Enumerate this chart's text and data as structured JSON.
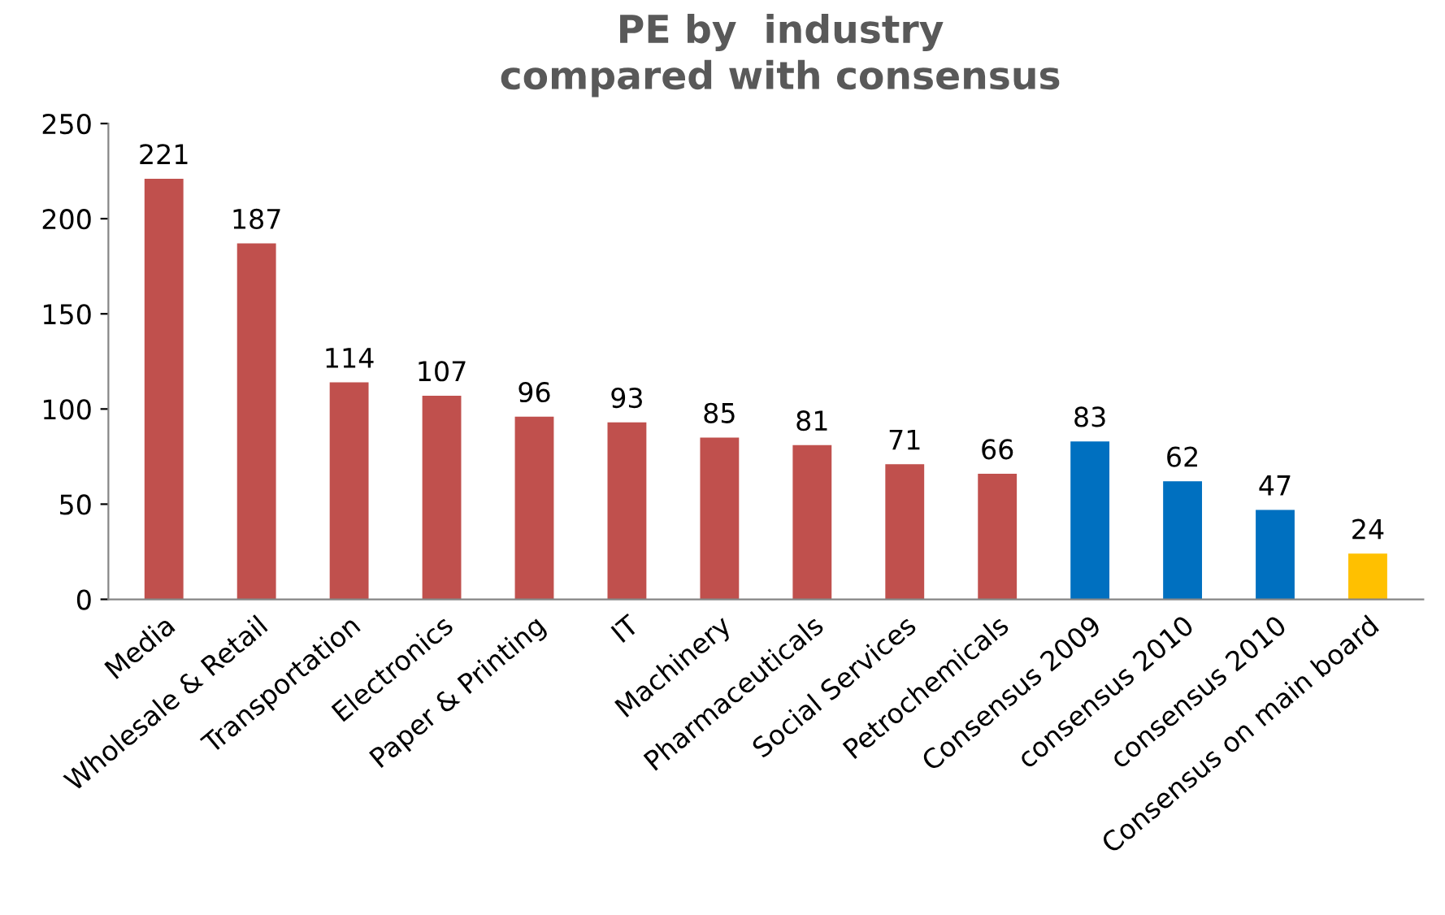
{
  "chart_data": {
    "type": "bar",
    "title": "PE by  industry\ncompared with consensus",
    "categories": [
      "Media",
      "Wholesale & Retail",
      "Transportation",
      "Electronics",
      "Paper & Printing",
      "IT",
      "Machinery",
      "Pharmaceuticals",
      "Social Services",
      "Petrochemicals",
      "Consensus 2009",
      "consensus 2010",
      "consensus 2010",
      "Consensus on main board"
    ],
    "values": [
      221,
      187,
      114,
      107,
      96,
      93,
      85,
      81,
      71,
      66,
      83,
      62,
      47,
      24
    ],
    "colors": [
      "#c0504d",
      "#c0504d",
      "#c0504d",
      "#c0504d",
      "#c0504d",
      "#c0504d",
      "#c0504d",
      "#c0504d",
      "#c0504d",
      "#c0504d",
      "#0070c0",
      "#0070c0",
      "#0070c0",
      "#ffc000"
    ],
    "ylim": [
      0,
      250
    ],
    "yticks": [
      0,
      50,
      100,
      150,
      200,
      250
    ],
    "grid": false,
    "legend": false,
    "data_labels": true
  }
}
